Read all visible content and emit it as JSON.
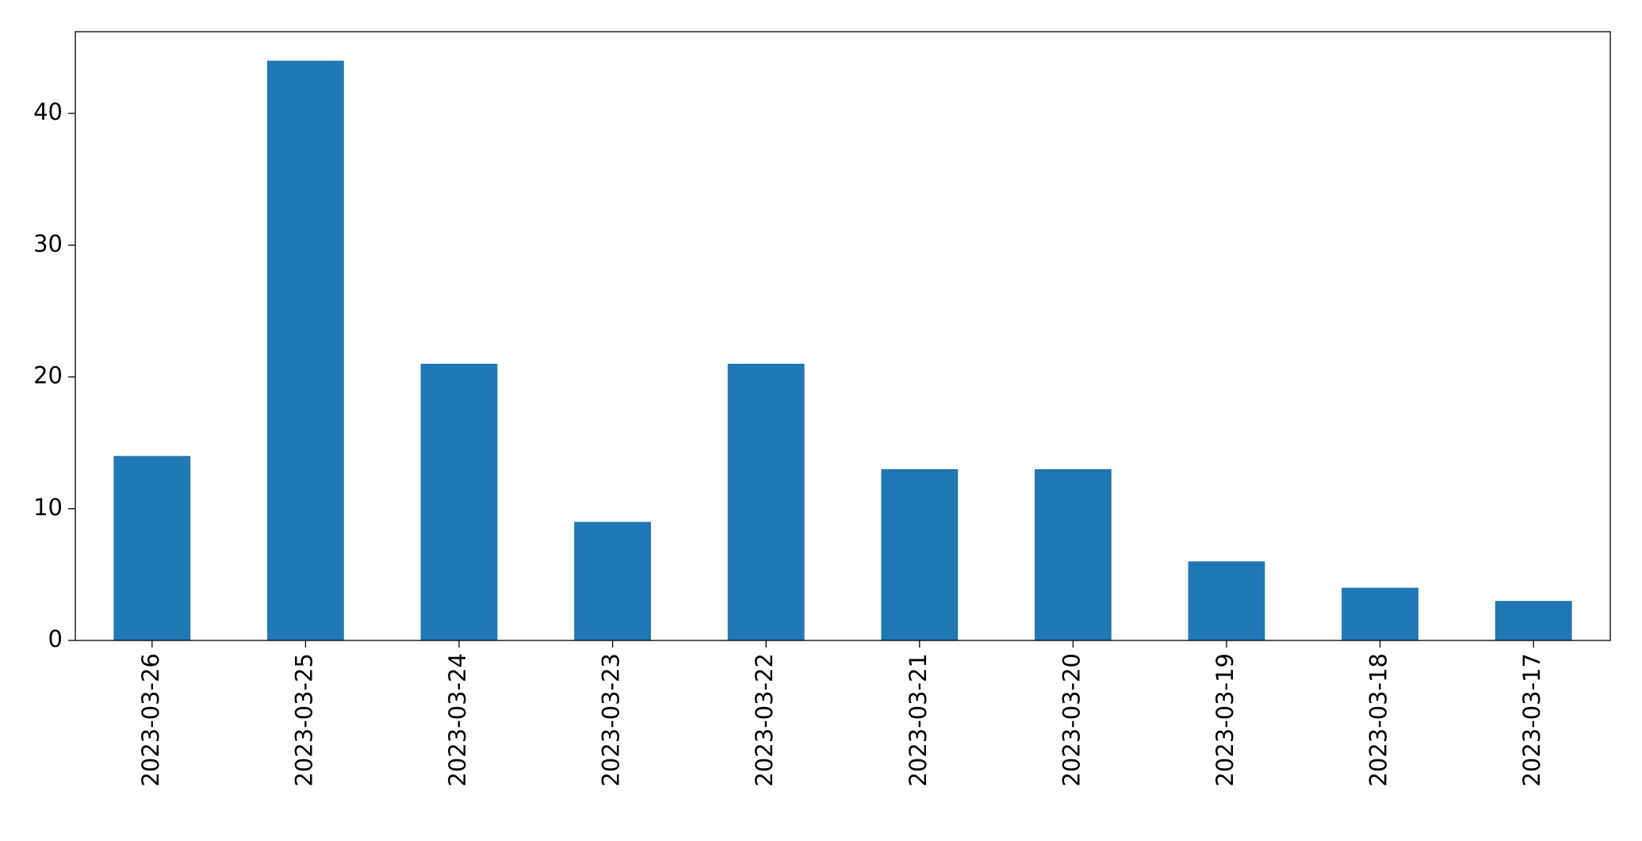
{
  "chart_data": {
    "type": "bar",
    "categories": [
      "2023-03-26",
      "2023-03-25",
      "2023-03-24",
      "2023-03-23",
      "2023-03-22",
      "2023-03-21",
      "2023-03-20",
      "2023-03-19",
      "2023-03-18",
      "2023-03-17"
    ],
    "values": [
      14,
      44,
      21,
      9,
      21,
      13,
      13,
      6,
      4,
      3
    ],
    "color": "#1f77b4",
    "ylim": [
      0,
      46.2
    ],
    "yticks": [
      0,
      10,
      20,
      30,
      40
    ],
    "grid": false
  }
}
